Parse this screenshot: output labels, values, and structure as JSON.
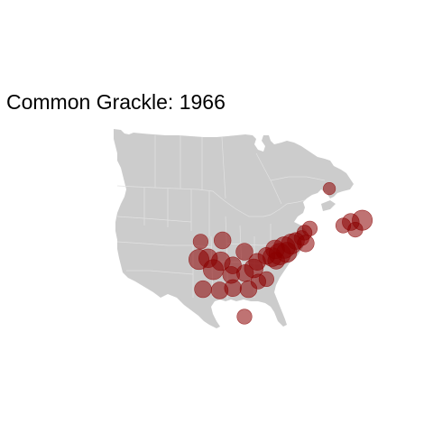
{
  "title": "Common Grackle: 1966",
  "colors": {
    "land": "#cccccc",
    "borders": "#e2e2e2",
    "point": "#8b0000"
  },
  "point_opacity": 0.55,
  "observations": [
    {
      "lon": -67.7,
      "lat": 51.5,
      "count": 1
    },
    {
      "lon": -62.0,
      "lat": 46.2,
      "count": 5
    },
    {
      "lon": -64.0,
      "lat": 45.9,
      "count": 3
    },
    {
      "lon": -65.3,
      "lat": 45.3,
      "count": 2
    },
    {
      "lon": -63.2,
      "lat": 44.6,
      "count": 2
    },
    {
      "lon": -71.1,
      "lat": 44.8,
      "count": 2
    },
    {
      "lon": -72.0,
      "lat": 44.1,
      "count": 2
    },
    {
      "lon": -72.5,
      "lat": 43.2,
      "count": 2
    },
    {
      "lon": -73.5,
      "lat": 42.7,
      "count": 3
    },
    {
      "lon": -71.8,
      "lat": 42.3,
      "count": 3
    },
    {
      "lon": -74.3,
      "lat": 42.2,
      "count": 5
    },
    {
      "lon": -75.5,
      "lat": 41.6,
      "count": 6
    },
    {
      "lon": -75.1,
      "lat": 40.8,
      "count": 5
    },
    {
      "lon": -77.1,
      "lat": 41.3,
      "count": 4
    },
    {
      "lon": -76.3,
      "lat": 40.5,
      "count": 6
    },
    {
      "lon": -77.6,
      "lat": 40.0,
      "count": 4
    },
    {
      "lon": -76.9,
      "lat": 39.4,
      "count": 3
    },
    {
      "lon": -78.6,
      "lat": 40.2,
      "count": 3
    },
    {
      "lon": -80.2,
      "lat": 39.2,
      "count": 3
    },
    {
      "lon": -80.8,
      "lat": 38.1,
      "count": 4
    },
    {
      "lon": -82.4,
      "lat": 40.9,
      "count": 3
    },
    {
      "lon": -86.2,
      "lat": 42.8,
      "count": 3
    },
    {
      "lon": -90.0,
      "lat": 42.6,
      "count": 2
    },
    {
      "lon": -90.3,
      "lat": 39.6,
      "count": 5
    },
    {
      "lon": -88.7,
      "lat": 39.8,
      "count": 4
    },
    {
      "lon": -86.5,
      "lat": 39.3,
      "count": 4
    },
    {
      "lon": -87.8,
      "lat": 37.9,
      "count": 5
    },
    {
      "lon": -84.4,
      "lat": 38.6,
      "count": 3
    },
    {
      "lon": -84.7,
      "lat": 37.0,
      "count": 3
    },
    {
      "lon": -82.3,
      "lat": 37.3,
      "count": 3
    },
    {
      "lon": -89.6,
      "lat": 34.6,
      "count": 3
    },
    {
      "lon": -86.7,
      "lat": 34.4,
      "count": 3
    },
    {
      "lon": -84.4,
      "lat": 34.8,
      "count": 3
    },
    {
      "lon": -81.7,
      "lat": 34.6,
      "count": 3
    },
    {
      "lon": -80.0,
      "lat": 35.9,
      "count": 2
    },
    {
      "lon": -78.6,
      "lat": 36.3,
      "count": 2
    },
    {
      "lon": -82.4,
      "lat": 30.0,
      "count": 2
    }
  ]
}
